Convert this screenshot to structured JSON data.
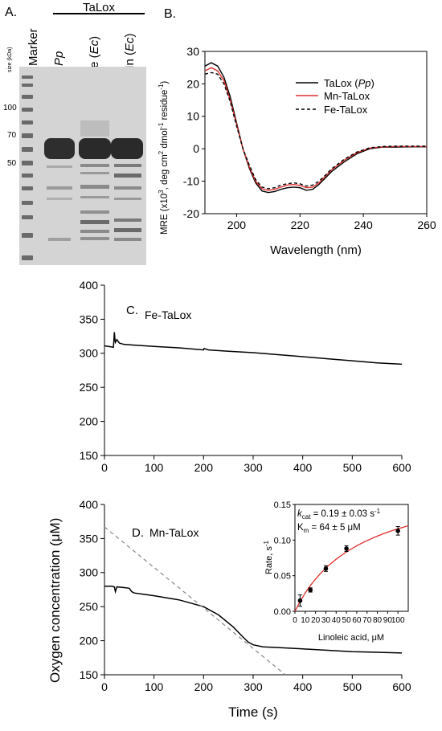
{
  "panel_labels": {
    "a": "A.",
    "b": "B.",
    "c": "C.",
    "d": "D."
  },
  "gel": {
    "group_label": "TaLox",
    "size_label": "size (kDa)",
    "lanes": [
      {
        "text": "Marker",
        "italic": "",
        "suffix": ""
      },
      {
        "text": "",
        "italic": "Pp",
        "suffix": ""
      },
      {
        "text": "Fe (",
        "italic": "Ec",
        "suffix": ")"
      },
      {
        "text": "Mn (",
        "italic": "Ec",
        "suffix": ")"
      }
    ],
    "markers": [
      "100",
      "70",
      "50"
    ]
  },
  "chart_data": [
    {
      "id": "circular-dichroism",
      "type": "line",
      "xlabel": "Wavelength (nm)",
      "ylabel": {
        "a": "MRE (x10",
        "a_sup": "3",
        "b": ", deg cm",
        "b_sup": "2",
        "c": " dmol",
        "c_sup": "-1",
        "d": "residue",
        "d_sup": "-1",
        "e": ")"
      },
      "xlim": [
        190,
        260
      ],
      "ylim": [
        -20,
        30
      ],
      "xticks": [
        200,
        220,
        240,
        260
      ],
      "yticks": [
        -20,
        -10,
        0,
        10,
        20,
        30
      ],
      "legend_position": "top-right",
      "series": [
        {
          "name": "TaLox (",
          "name_italic": "Pp",
          "name_suffix": ")",
          "color": "#000000",
          "dash": "",
          "x": [
            190,
            192,
            194,
            196,
            198,
            200,
            202,
            204,
            206,
            208,
            210,
            212,
            214,
            216,
            218,
            220,
            222,
            224,
            226,
            228,
            230,
            234,
            238,
            242,
            246,
            250,
            255,
            260
          ],
          "y": [
            25.5,
            26.5,
            25.5,
            22,
            16,
            8,
            0,
            -6,
            -10.5,
            -13,
            -13.5,
            -13.2,
            -12.5,
            -12,
            -11.8,
            -12,
            -12.8,
            -12.5,
            -11,
            -9,
            -7,
            -4,
            -1.5,
            0,
            0.5,
            0.5,
            0.6,
            0.6
          ]
        },
        {
          "name": "Mn-TaLox",
          "name_italic": "",
          "name_suffix": "",
          "color": "#e03030",
          "dash": "",
          "x": [
            190,
            192,
            194,
            196,
            198,
            200,
            202,
            204,
            206,
            208,
            210,
            212,
            214,
            216,
            218,
            220,
            222,
            224,
            226,
            228,
            230,
            234,
            238,
            242,
            246,
            250,
            255,
            260
          ],
          "y": [
            24,
            25,
            24,
            21,
            15,
            7.5,
            0,
            -5.5,
            -10,
            -12.3,
            -12.8,
            -12.5,
            -11.8,
            -11.2,
            -11,
            -11.3,
            -12,
            -11.8,
            -10.5,
            -8.5,
            -6.5,
            -3.5,
            -1.2,
            0.2,
            0.6,
            0.7,
            0.7,
            0.7
          ]
        },
        {
          "name": "Fe-TaLox",
          "name_italic": "",
          "name_suffix": "",
          "color": "#000000",
          "dash": "4,3",
          "x": [
            190,
            192,
            194,
            196,
            198,
            200,
            202,
            204,
            206,
            208,
            210,
            212,
            214,
            216,
            218,
            220,
            222,
            224,
            226,
            228,
            230,
            234,
            238,
            242,
            246,
            250,
            255,
            260
          ],
          "y": [
            23,
            23.5,
            23,
            20,
            14.5,
            7,
            0,
            -5,
            -9.5,
            -11.8,
            -12.3,
            -12,
            -11.2,
            -10.8,
            -10.5,
            -10.8,
            -11.5,
            -11.2,
            -10,
            -8.2,
            -6.2,
            -3.2,
            -1,
            0.3,
            0.7,
            0.8,
            0.8,
            0.8
          ]
        }
      ]
    },
    {
      "id": "fe-talox-oxygen",
      "type": "line",
      "label": "Fe-TaLox",
      "xlim": [
        0,
        600
      ],
      "ylim": [
        150,
        400
      ],
      "xticks": [
        0,
        100,
        200,
        300,
        400,
        500,
        600
      ],
      "yticks": [
        150,
        200,
        250,
        300,
        350,
        400
      ],
      "series": [
        {
          "color": "#000000",
          "x": [
            0,
            18,
            19,
            20,
            21,
            22,
            25,
            30,
            40,
            60,
            100,
            150,
            200,
            201,
            210,
            250,
            300,
            350,
            400,
            450,
            500,
            550,
            600
          ],
          "y": [
            311,
            309,
            318,
            331,
            322,
            316,
            320,
            315,
            313,
            312,
            310,
            308,
            305,
            307,
            305,
            303,
            301,
            298,
            295,
            292,
            289,
            286,
            284
          ]
        }
      ]
    },
    {
      "id": "mn-talox-oxygen",
      "type": "line",
      "label": "Mn-TaLox",
      "xlabel": "Time (s)",
      "xlim": [
        0,
        600
      ],
      "ylim": [
        150,
        400
      ],
      "xticks": [
        0,
        100,
        200,
        300,
        400,
        500,
        600
      ],
      "yticks": [
        150,
        200,
        250,
        300,
        350,
        400
      ],
      "series": [
        {
          "color": "#000000",
          "x": [
            0,
            15,
            20,
            22,
            25,
            40,
            50,
            55,
            60,
            80,
            100,
            150,
            200,
            230,
            260,
            280,
            290,
            300,
            320,
            350,
            400,
            450,
            500,
            550,
            600
          ],
          "y": [
            280,
            280,
            279,
            272,
            279,
            278,
            277,
            272,
            270,
            268,
            266,
            260,
            250,
            238,
            220,
            205,
            198,
            194,
            191,
            190,
            188,
            186,
            184,
            183,
            182
          ]
        },
        {
          "color": "#888888",
          "dash": "5,4",
          "x": [
            0,
            365
          ],
          "y": [
            367,
            150
          ]
        }
      ]
    },
    {
      "id": "kinetics-inset",
      "type": "scatter",
      "xlabel": "Linoleic acid, μM",
      "ylabel": "Rate, s",
      "ylabel_sup": "-1",
      "xlim": [
        0,
        110
      ],
      "ylim": [
        0,
        0.15
      ],
      "xticks": [
        0,
        10,
        20,
        30,
        40,
        50,
        60,
        70,
        80,
        90,
        100
      ],
      "yticks": [
        0.0,
        0.05,
        0.1,
        0.15
      ],
      "ytick_labels": [
        "0.00",
        "0.05",
        "0.10",
        "0.15"
      ],
      "annotation": {
        "k": "k",
        "k_sub": "cat",
        "k_rest": " = 0.19 ± 0.03 s",
        "k_sup": "-1",
        "km": "K",
        "km_sub": "m",
        "km_rest": " = 64 ± 5 μM"
      },
      "points": {
        "x": [
          5,
          15,
          30,
          50,
          100
        ],
        "y": [
          0.015,
          0.03,
          0.06,
          0.088,
          0.113
        ],
        "err": [
          0.008,
          0.003,
          0.004,
          0.004,
          0.006
        ]
      },
      "fit": {
        "color": "#e03030",
        "kcat": 0.19,
        "km": 64
      }
    }
  ],
  "shared_ylabel": "Oxygen concentration (μM)"
}
